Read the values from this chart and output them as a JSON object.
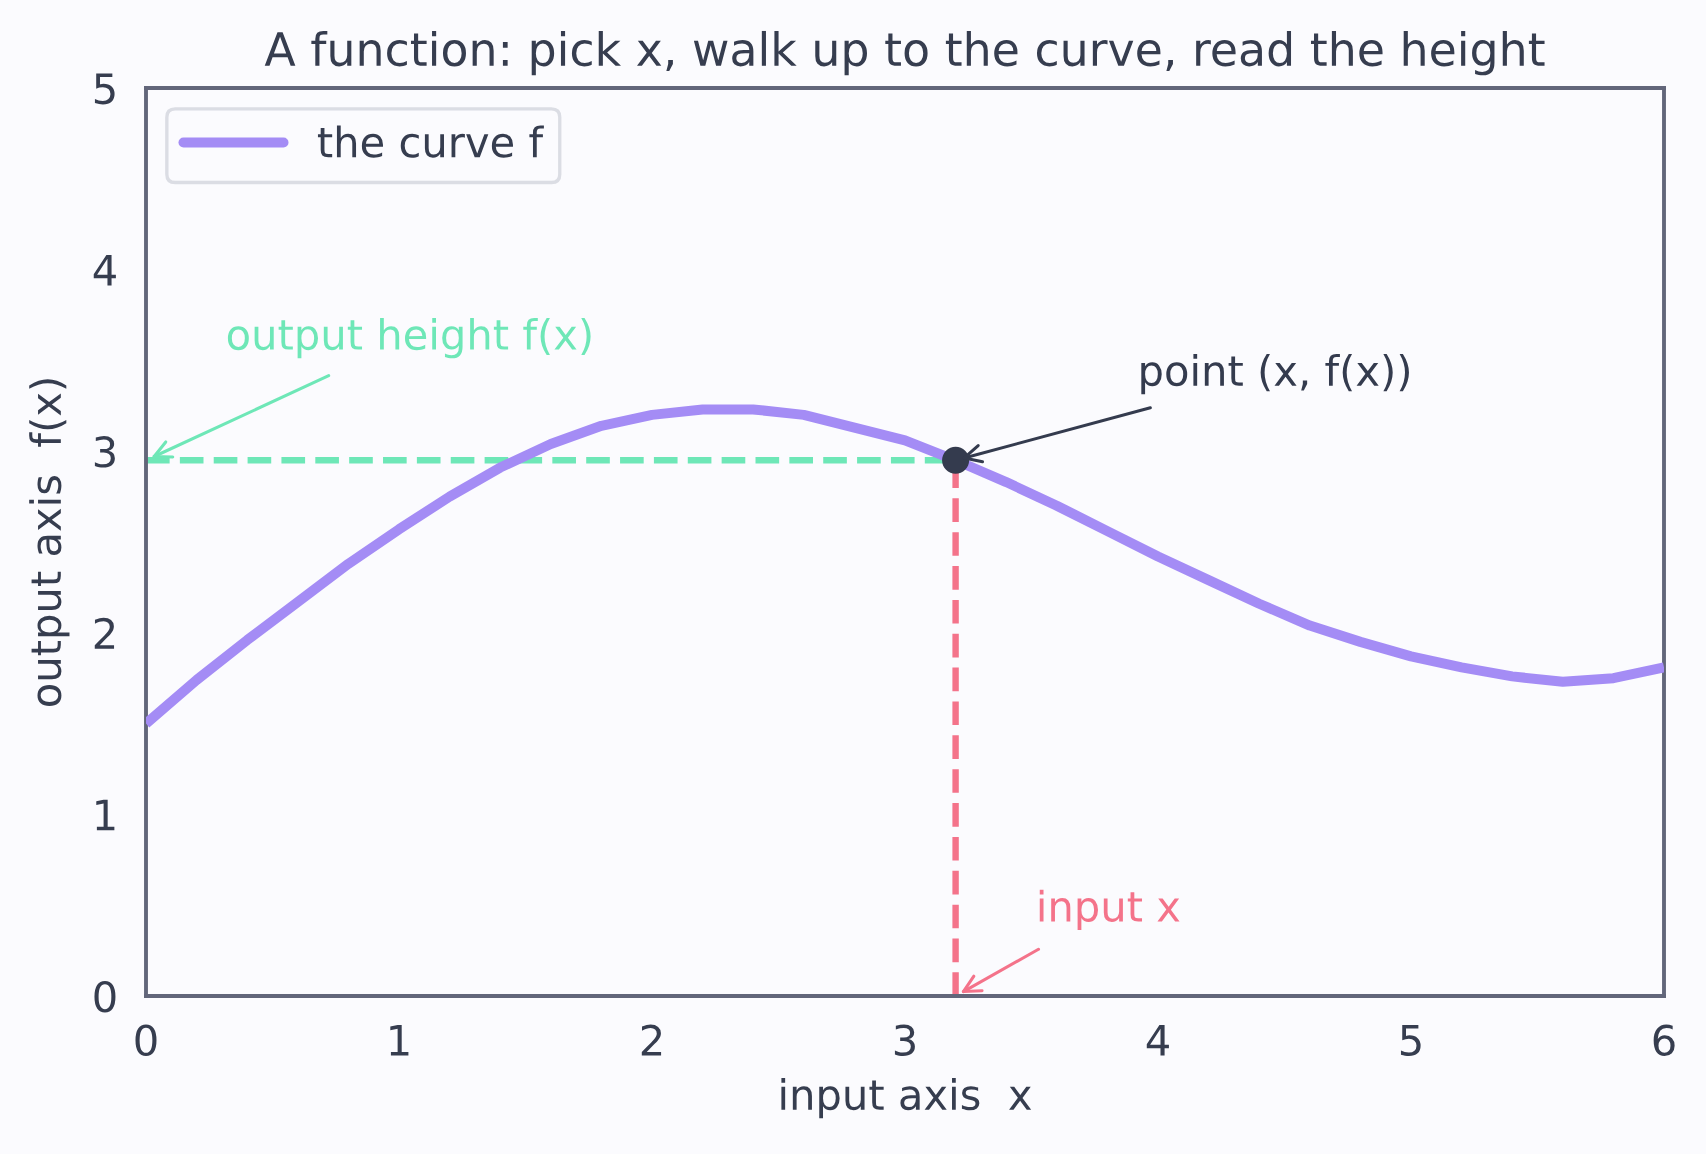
{
  "chart_data": {
    "type": "line",
    "title": "A function: pick x, walk up to the curve, read the height",
    "xlabel": "input axis  x",
    "ylabel": "output axis  f(x)",
    "series": [
      {
        "name": "the curve f",
        "color": "#a48cf5",
        "line_style": "solid",
        "x": [
          0,
          0.2,
          0.4,
          0.6,
          0.8,
          1.0,
          1.2,
          1.4,
          1.6,
          1.8,
          2.0,
          2.2,
          2.4,
          2.6,
          2.8,
          3.0,
          3.2,
          3.4,
          3.6,
          3.8,
          4.0,
          4.2,
          4.4,
          4.6,
          4.8,
          5.0,
          5.2,
          5.4,
          5.6,
          5.8,
          6.0
        ],
        "values": [
          1.5,
          1.74,
          1.96,
          2.17,
          2.38,
          2.57,
          2.75,
          2.91,
          3.04,
          3.14,
          3.2,
          3.23,
          3.23,
          3.2,
          3.13,
          3.06,
          2.95,
          2.83,
          2.7,
          2.56,
          2.42,
          2.29,
          2.16,
          2.04,
          1.95,
          1.87,
          1.81,
          1.76,
          1.73,
          1.75,
          1.81
        ]
      },
      {
        "color": "#6ee7b7",
        "line_style": "dashed",
        "x": [
          0,
          3.2
        ],
        "values": [
          2.95,
          2.95
        ]
      },
      {
        "color": "#f4738a",
        "line_style": "dashed",
        "x": [
          3.2,
          3.2
        ],
        "values": [
          0,
          2.95
        ]
      },
      {
        "type": "scatter",
        "color": "#343b4e",
        "marker": "circle",
        "x": [
          3.2
        ],
        "values": [
          2.95
        ]
      }
    ],
    "annotations": [
      {
        "text": "output height f(x)",
        "x": 0,
        "y": 2.95
      },
      {
        "text": "point (x, f(x))",
        "x": 3.2,
        "y": 2.95
      },
      {
        "text": "input x",
        "x": 3.2,
        "y": 0
      }
    ],
    "xlim": [
      0,
      6
    ],
    "ylim": [
      0,
      5
    ],
    "xticks": [
      0,
      1,
      2,
      3,
      4,
      5,
      6
    ],
    "yticks": [
      0,
      1,
      2,
      3,
      4,
      5
    ],
    "legend": "top left"
  }
}
